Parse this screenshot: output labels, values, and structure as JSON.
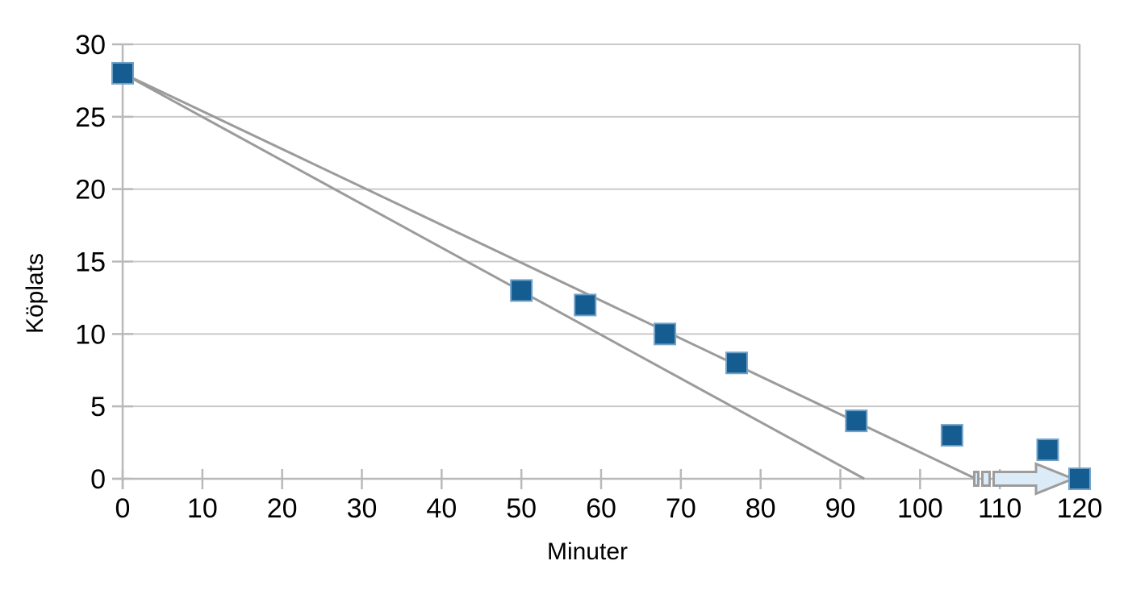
{
  "chart_data": {
    "type": "scatter",
    "title": "",
    "xlabel": "Minuter",
    "ylabel": "Köplats",
    "xlim": [
      0,
      120
    ],
    "ylim": [
      0,
      30
    ],
    "x_ticks": [
      0,
      10,
      20,
      30,
      40,
      50,
      60,
      70,
      80,
      90,
      100,
      110,
      120
    ],
    "y_ticks": [
      0,
      5,
      10,
      15,
      20,
      25,
      30
    ],
    "grid": "horizontal-only",
    "legend": "none",
    "points": [
      [
        0,
        28
      ],
      [
        50,
        13
      ],
      [
        58,
        12
      ],
      [
        68,
        10
      ],
      [
        77,
        8
      ],
      [
        92,
        4
      ],
      [
        104,
        3
      ],
      [
        116,
        2
      ],
      [
        120,
        0
      ]
    ],
    "trend_lines": [
      {
        "name": "steep-projection-line",
        "from": [
          0,
          28
        ],
        "to": [
          93,
          0
        ]
      },
      {
        "name": "shallow-projection-line",
        "from": [
          0,
          28
        ],
        "to": [
          107,
          0
        ]
      }
    ],
    "annotation_arrow": {
      "shape": "striped-right-arrow",
      "from": [
        107,
        0
      ],
      "to": [
        120,
        0
      ]
    },
    "colors": {
      "marker_fill": "#155d90",
      "marker_edge": "#73a2c9",
      "trend_line": "#9b9b9b",
      "gridline": "#c9c9c9",
      "axis_line": "#b9b9b9",
      "arrow_fill": "#dcebf8",
      "arrow_stroke": "#9c9c9c",
      "text": "#000000",
      "background": "#ffffff"
    }
  }
}
